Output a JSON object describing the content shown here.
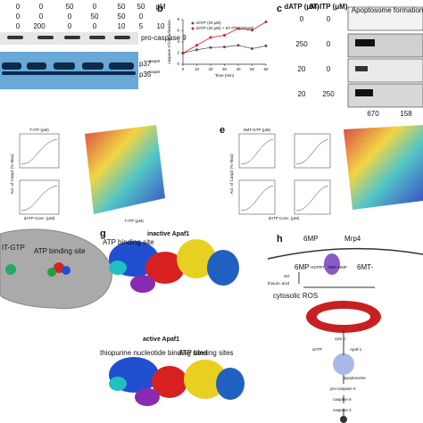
{
  "panel_a": {
    "rows": [
      [
        "0",
        "0",
        "50",
        "0",
        "50",
        "50",
        "μM"
      ],
      [
        "0",
        "0",
        "0",
        "50",
        "50",
        "0"
      ],
      [
        "0",
        "200",
        "0",
        "0",
        "10",
        "5",
        "10"
      ]
    ],
    "bands": {
      "procaspase": "pro-caspase 9",
      "p37": {
        "main": "p37",
        "sup": "casp9"
      },
      "p35": {
        "main": "p35",
        "sup": "casp9"
      }
    }
  },
  "panel_b": {
    "label": "b",
    "ylabel": "caspase 3 fold activation",
    "xlabel": "Time (min)",
    "x": [
      0,
      10,
      20,
      30,
      40,
      50,
      60
    ],
    "xlim": [
      0,
      60
    ],
    "xticks": [
      0,
      10,
      20,
      30,
      40,
      50,
      60
    ],
    "ylim": [
      0,
      8
    ],
    "yticks": [
      0,
      2,
      4,
      6,
      8
    ],
    "series": [
      {
        "name": "dATP (20 μM)",
        "color": "#555555",
        "values": [
          2,
          2.6,
          3,
          3.1,
          3.4,
          2.8,
          3.3
        ]
      },
      {
        "name": "dATP (20 μM) + 6T-ITP (200μM)",
        "color": "#d62020",
        "values": [
          2,
          3.4,
          4.8,
          5.2,
          6.4,
          6.1,
          7.6
        ]
      }
    ]
  },
  "panel_c": {
    "label": "c",
    "col1": "dATP (μM)",
    "col2": "6T-ITP (μM)",
    "title": "Apoptosome formation",
    "rows": [
      [
        "0",
        "0"
      ],
      [
        "250",
        "0"
      ],
      [
        "20",
        "0"
      ],
      [
        "20",
        "250"
      ]
    ],
    "markers": [
      "670",
      "158"
    ]
  },
  "panel_d": {
    "inset_title": "T-ITP (μM)",
    "xlabel": "dATP Conc. (μM)",
    "ylabel": "Act. of Casp3 (% Max)",
    "surface_xlabel": "T-ITP (μM)"
  },
  "panel_e": {
    "label": "e",
    "inset_title": "6MT-GTP (μM)",
    "xlabel": "dATP Conc. (μM)",
    "ylabel": "Act. of Casp3 (% Max)"
  },
  "panel_f": {
    "ligand": "IT-GTP",
    "site": "ATP binding site"
  },
  "panel_g": {
    "label": "g",
    "inactive": "inactive Apaf1",
    "site": "ATP binding site",
    "active": "active Apaf1",
    "thio_sites": "thiopurine nucleotide binding sites",
    "atp_sites": "ATP binding sites"
  },
  "panel_h": {
    "label": "h",
    "mp_out": "6MP",
    "mrp4": "Mrp4",
    "mp_in": "6MP",
    "hgprt": "HGPRT",
    "nmp": "6MP-NMP",
    "mt": "6MT-",
    "thiouric": "thiouric acid",
    "xo": "XO",
    "ros": "cytosolic ROS",
    "cytoc": "cyto C",
    "datp": "dATP",
    "apaf": "Apaf-1",
    "apoptosome": "apoptosome",
    "procasp9": "pro-caspase 9",
    "casp9": "caspase 9",
    "casp3": "caspase 3"
  }
}
